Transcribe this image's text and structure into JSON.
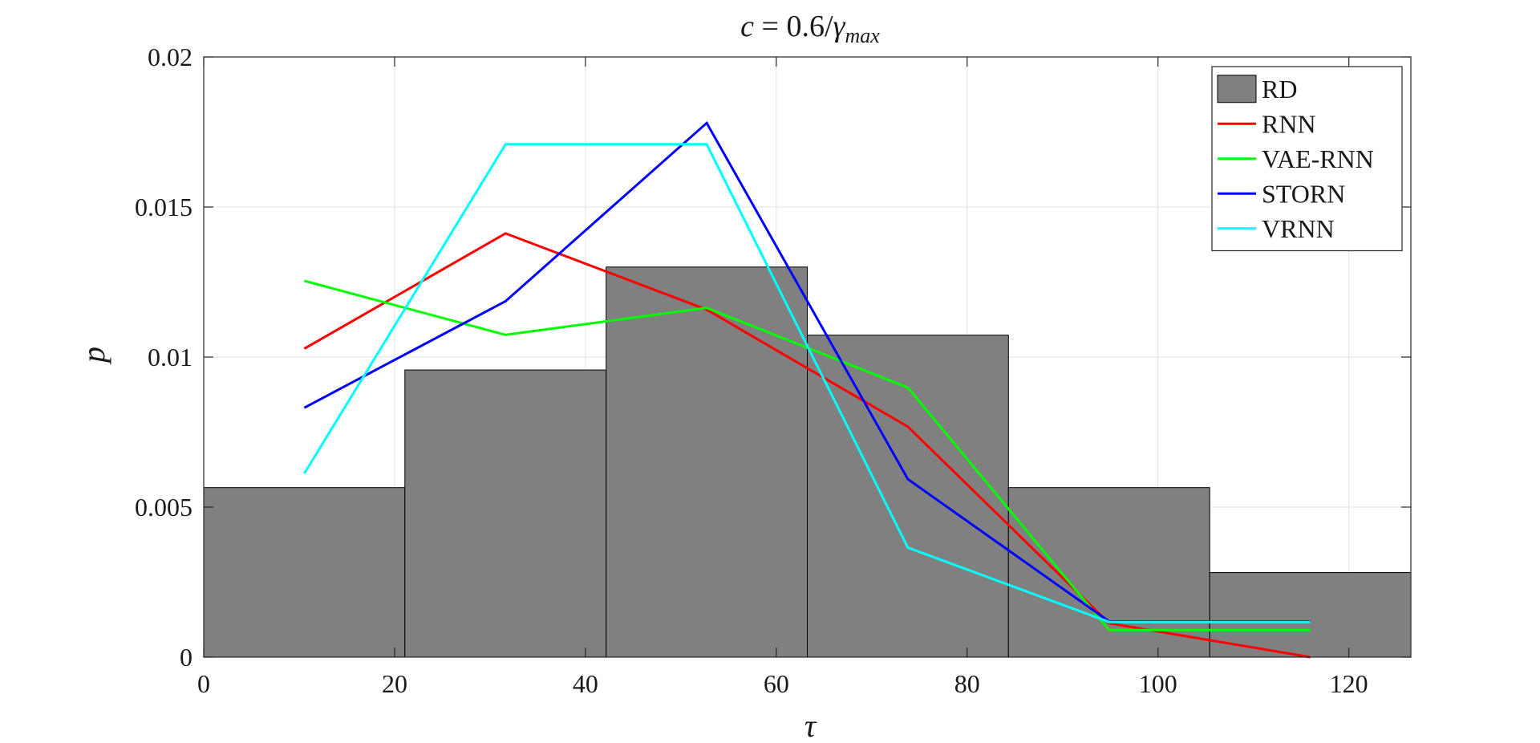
{
  "chart_data": {
    "type": "bar",
    "title": {
      "prefix": "c",
      "middle": " = 0.6/",
      "symbol": "γ",
      "subscript": "max"
    },
    "xlabel": "τ",
    "ylabel": "p",
    "xlim": [
      0,
      126.5
    ],
    "ylim": [
      0,
      0.02
    ],
    "xticks": [
      0,
      20,
      40,
      60,
      80,
      100,
      120
    ],
    "yticks": [
      0,
      0.005,
      0.01,
      0.015,
      0.02
    ],
    "ytick_labels": [
      "0",
      "0.005",
      "0.01",
      "0.015",
      "0.02"
    ],
    "grid": true,
    "legend_position": "top-right",
    "histogram": {
      "name": "RD",
      "color": "#808080",
      "bin_edges": [
        0,
        21.08,
        42.17,
        63.25,
        84.33,
        105.42,
        126.5
      ],
      "values": [
        0.00565,
        0.00957,
        0.013,
        0.01073,
        0.00565,
        0.00282
      ]
    },
    "x": [
      10.54,
      31.63,
      52.71,
      73.79,
      94.88,
      115.96
    ],
    "series": [
      {
        "name": "RNN",
        "color": "#ff0000",
        "values": [
          0.01028,
          0.01412,
          0.01158,
          0.00768,
          0.00113,
          0.0
        ]
      },
      {
        "name": "VAE-RNN",
        "color": "#00ff00",
        "values": [
          0.01254,
          0.01074,
          0.01164,
          0.00898,
          0.0009,
          0.0009
        ]
      },
      {
        "name": "STORN",
        "color": "#0000ff",
        "values": [
          0.00831,
          0.01186,
          0.0178,
          0.00593,
          0.00119,
          0.00119
        ]
      },
      {
        "name": "VRNN",
        "color": "#00ffff",
        "values": [
          0.00612,
          0.01709,
          0.01709,
          0.00365,
          0.00117,
          0.00117
        ]
      }
    ]
  }
}
